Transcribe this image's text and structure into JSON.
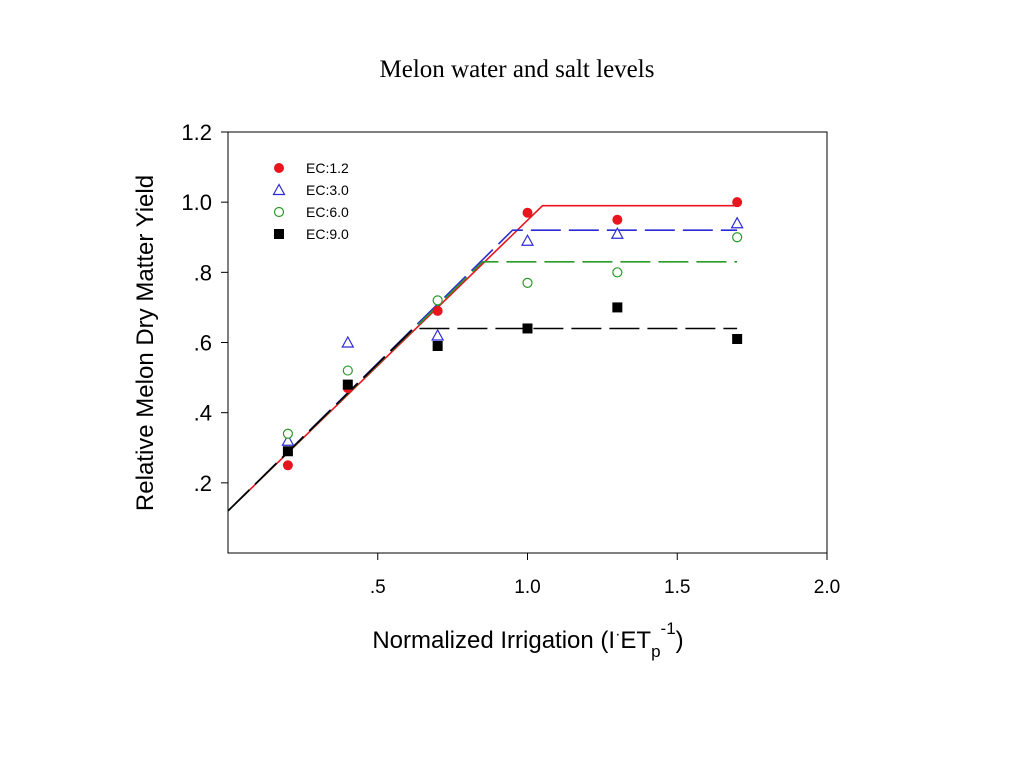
{
  "chart_data": {
    "type": "scatter",
    "title": "Melon water and salt levels",
    "xlabel_main": "Normalized Irrigation (I",
    "xlabel_dot": "·",
    "xlabel_et": "ET",
    "xlabel_sub": "p",
    "xlabel_sup": "-1",
    "xlabel_close": ")",
    "ylabel": "Relative Melon Dry Matter Yield",
    "xlim": [
      0,
      2.0
    ],
    "ylim": [
      0,
      1.2
    ],
    "x_ticks": [
      {
        "value": 0.5,
        "label": ".5"
      },
      {
        "value": 1.0,
        "label": "1.0"
      },
      {
        "value": 1.5,
        "label": "1.5"
      },
      {
        "value": 2.0,
        "label": "2.0"
      }
    ],
    "y_ticks": [
      {
        "value": 0.2,
        "label": ".2"
      },
      {
        "value": 0.4,
        "label": ".4"
      },
      {
        "value": 0.6,
        "label": ".6"
      },
      {
        "value": 0.8,
        "label": ".8"
      },
      {
        "value": 1.0,
        "label": "1.0"
      },
      {
        "value": 1.2,
        "label": "1.2"
      }
    ],
    "grid": false,
    "legend_position": "top-left",
    "series": [
      {
        "name": "EC:1.2",
        "marker": "filled-circle",
        "color": "#e8141e",
        "x": [
          0.2,
          0.4,
          0.7,
          1.0,
          1.3,
          1.7
        ],
        "y": [
          0.25,
          0.47,
          0.69,
          0.97,
          0.95,
          1.0
        ],
        "fit": {
          "style": "solid",
          "points": [
            [
              0.0,
              0.12
            ],
            [
              1.05,
              0.99
            ],
            [
              1.7,
              0.99
            ]
          ]
        }
      },
      {
        "name": "EC:3.0",
        "marker": "open-triangle",
        "color": "#2b2bd6",
        "x": [
          0.2,
          0.4,
          0.7,
          1.0,
          1.3,
          1.7
        ],
        "y": [
          0.32,
          0.6,
          0.62,
          0.89,
          0.91,
          0.94
        ],
        "fit": {
          "style": "long-dash",
          "points": [
            [
              0.0,
              0.12
            ],
            [
              0.95,
              0.92
            ],
            [
              1.7,
              0.92
            ]
          ]
        }
      },
      {
        "name": "EC:6.0",
        "marker": "open-circle",
        "color": "#2a9a2a",
        "x": [
          0.2,
          0.4,
          0.7,
          1.0,
          1.3,
          1.7
        ],
        "y": [
          0.34,
          0.52,
          0.72,
          0.77,
          0.8,
          0.9
        ],
        "fit": {
          "style": "long-dash",
          "points": [
            [
              0.0,
              0.12
            ],
            [
              0.85,
              0.83
            ],
            [
              1.7,
              0.83
            ]
          ]
        }
      },
      {
        "name": "EC:9.0",
        "marker": "filled-square",
        "color": "#000000",
        "x": [
          0.2,
          0.4,
          0.7,
          1.0,
          1.3,
          1.7
        ],
        "y": [
          0.29,
          0.48,
          0.59,
          0.64,
          0.7,
          0.61
        ],
        "fit": {
          "style": "long-dash",
          "points": [
            [
              0.0,
              0.12
            ],
            [
              0.62,
              0.64
            ],
            [
              1.7,
              0.64
            ]
          ]
        }
      }
    ]
  }
}
